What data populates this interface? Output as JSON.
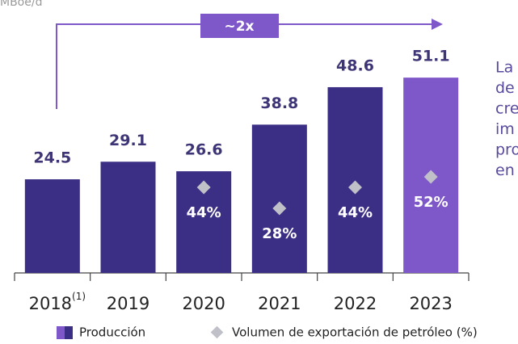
{
  "chart_data": {
    "type": "bar",
    "y_label": "MBoe/d",
    "categories": [
      "2018",
      "2019",
      "2020",
      "2021",
      "2022",
      "2023"
    ],
    "category_superscripts": [
      "(1)",
      null,
      null,
      null,
      null,
      null
    ],
    "series": [
      {
        "name": "Producción",
        "colors": [
          "#3b2f85",
          "#3b2f85",
          "#3b2f85",
          "#3b2f85",
          "#3b2f85",
          "#7e57c8"
        ],
        "values": [
          24.5,
          29.1,
          26.6,
          38.8,
          48.6,
          51.1
        ]
      },
      {
        "name": "Volumen de exportación de petróleo (%)",
        "type": "scatter",
        "color": "#c0c0c8",
        "values": [
          null,
          null,
          44,
          28,
          44,
          52
        ],
        "value_labels": [
          null,
          null,
          "44%",
          "28%",
          "44%",
          "52%"
        ]
      }
    ],
    "ylim": [
      0,
      60
    ],
    "annotations": [
      {
        "text": "~2x"
      }
    ],
    "side_text": [
      "La",
      "de",
      "cre",
      "im",
      "pro",
      "en"
    ]
  }
}
